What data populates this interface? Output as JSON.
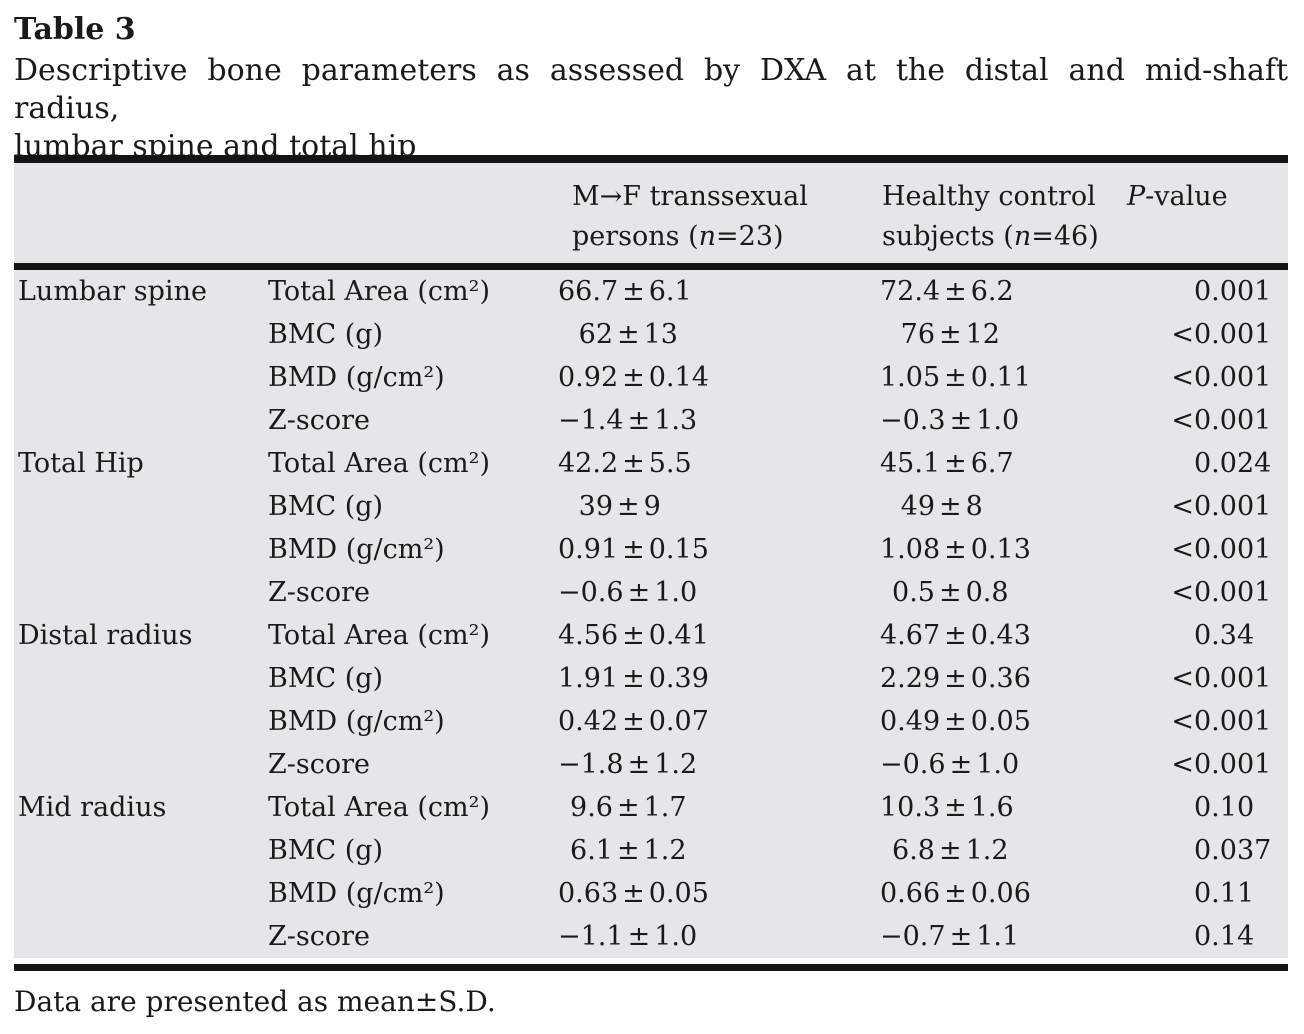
{
  "page": {
    "title": "Table 3",
    "caption_line1": "Descriptive bone parameters as assessed by DXA at the distal and mid-shaft radius,",
    "caption_line2": "lumbar spine and total hip",
    "footnote": "Data are presented as mean±S.D."
  },
  "table": {
    "pm": "±",
    "header": {
      "col3_line1": "M→F transsexual",
      "col3_line2_pre": "persons (",
      "col3_line2_it": "n",
      "col3_line2_post": "=23)",
      "col4_line1": "Healthy control",
      "col4_line2_pre": "subjects (",
      "col4_line2_it": "n",
      "col4_line2_post": "=46)",
      "col5_it": "P",
      "col5_post": "-value"
    },
    "rows": [
      {
        "site": "Lumbar spine",
        "param": "Total Area (cm²)",
        "tx_m": "66.7",
        "tx_s": "6.1",
        "hc_m": "72.4",
        "hc_s": "6.2",
        "p_pre": "",
        "p": "0.001"
      },
      {
        "site": "",
        "param": "BMC (g)",
        "tx_m": "62",
        "tx_s": "13",
        "hc_m": "76",
        "hc_s": "12",
        "p_pre": "<",
        "p": "0.001"
      },
      {
        "site": "",
        "param": "BMD (g/cm²)",
        "tx_m": "0.92",
        "tx_s": "0.14",
        "hc_m": "1.05",
        "hc_s": "0.11",
        "p_pre": "<",
        "p": "0.001"
      },
      {
        "site": "",
        "param": "Z-score",
        "tx_m": "−1.4",
        "tx_s": "1.3",
        "hc_m": "−0.3",
        "hc_s": "1.0",
        "p_pre": "<",
        "p": "0.001"
      },
      {
        "site": "Total Hip",
        "param": "Total Area (cm²)",
        "tx_m": "42.2",
        "tx_s": "5.5",
        "hc_m": "45.1",
        "hc_s": "6.7",
        "p_pre": "",
        "p": "0.024"
      },
      {
        "site": "",
        "param": "BMC (g)",
        "tx_m": "39",
        "tx_s": "9",
        "hc_m": "49",
        "hc_s": "8",
        "p_pre": "<",
        "p": "0.001"
      },
      {
        "site": "",
        "param": "BMD (g/cm²)",
        "tx_m": "0.91",
        "tx_s": "0.15",
        "hc_m": "1.08",
        "hc_s": "0.13",
        "p_pre": "<",
        "p": "0.001"
      },
      {
        "site": "",
        "param": "Z-score",
        "tx_m": "−0.6",
        "tx_s": "1.0",
        "hc_m": "0.5",
        "hc_s": "0.8",
        "p_pre": "<",
        "p": "0.001"
      },
      {
        "site": "Distal radius",
        "param": "Total Area (cm²)",
        "tx_m": "4.56",
        "tx_s": "0.41",
        "hc_m": "4.67",
        "hc_s": "0.43",
        "p_pre": "",
        "p": "0.34"
      },
      {
        "site": "",
        "param": "BMC (g)",
        "tx_m": "1.91",
        "tx_s": "0.39",
        "hc_m": "2.29",
        "hc_s": "0.36",
        "p_pre": "<",
        "p": "0.001"
      },
      {
        "site": "",
        "param": "BMD (g/cm²)",
        "tx_m": "0.42",
        "tx_s": "0.07",
        "hc_m": "0.49",
        "hc_s": "0.05",
        "p_pre": "<",
        "p": "0.001"
      },
      {
        "site": "",
        "param": "Z-score",
        "tx_m": "−1.8",
        "tx_s": "1.2",
        "hc_m": "−0.6",
        "hc_s": "1.0",
        "p_pre": "<",
        "p": "0.001"
      },
      {
        "site": "Mid radius",
        "param": "Total Area (cm²)",
        "tx_m": "9.6",
        "tx_s": "1.7",
        "hc_m": "10.3",
        "hc_s": "1.6",
        "p_pre": "",
        "p": "0.10"
      },
      {
        "site": "",
        "param": "BMC (g)",
        "tx_m": "6.1",
        "tx_s": "1.2",
        "hc_m": "6.8",
        "hc_s": "1.2",
        "p_pre": "",
        "p": "0.037"
      },
      {
        "site": "",
        "param": "BMD (g/cm²)",
        "tx_m": "0.63",
        "tx_s": "0.05",
        "hc_m": "0.66",
        "hc_s": "0.06",
        "p_pre": "",
        "p": "0.11"
      },
      {
        "site": "",
        "param": "Z-score",
        "tx_m": "−1.1",
        "tx_s": "1.0",
        "hc_m": "−0.7",
        "hc_s": "1.1",
        "p_pre": "",
        "p": "0.14"
      }
    ]
  },
  "colors": {
    "table_background": "#e5e6e7",
    "rule": "#141414",
    "text": "#1a1a1a"
  }
}
